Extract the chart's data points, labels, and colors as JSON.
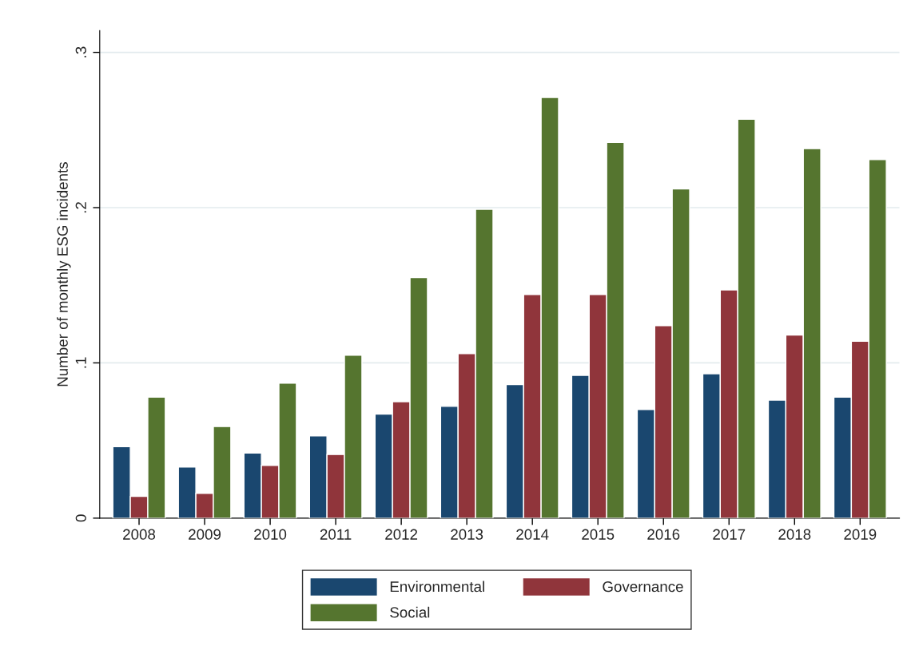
{
  "chart_data": {
    "type": "bar",
    "ylabel": "Number of monthly ESG incidents",
    "categories": [
      "2008",
      "2009",
      "2010",
      "2011",
      "2012",
      "2013",
      "2014",
      "2015",
      "2016",
      "2017",
      "2018",
      "2019"
    ],
    "series": [
      {
        "name": "Environmental",
        "color": "#1a476f",
        "values": [
          0.046,
          0.033,
          0.042,
          0.053,
          0.067,
          0.072,
          0.086,
          0.092,
          0.07,
          0.093,
          0.076,
          0.078
        ]
      },
      {
        "name": "Governance",
        "color": "#90353b",
        "values": [
          0.014,
          0.016,
          0.034,
          0.041,
          0.075,
          0.106,
          0.144,
          0.144,
          0.124,
          0.147,
          0.118,
          0.114
        ]
      },
      {
        "name": "Social",
        "color": "#55752f",
        "values": [
          0.078,
          0.059,
          0.087,
          0.105,
          0.155,
          0.199,
          0.271,
          0.242,
          0.212,
          0.257,
          0.238,
          0.231
        ]
      }
    ],
    "ylim": [
      0,
      0.314
    ],
    "yticks": [
      0,
      {
        "value": 0.1,
        "label": ".1"
      },
      {
        "value": 0.2,
        "label": ".2"
      },
      {
        "value": 0.3,
        "label": ".3"
      }
    ],
    "grid": "y",
    "legend": "bottom"
  }
}
